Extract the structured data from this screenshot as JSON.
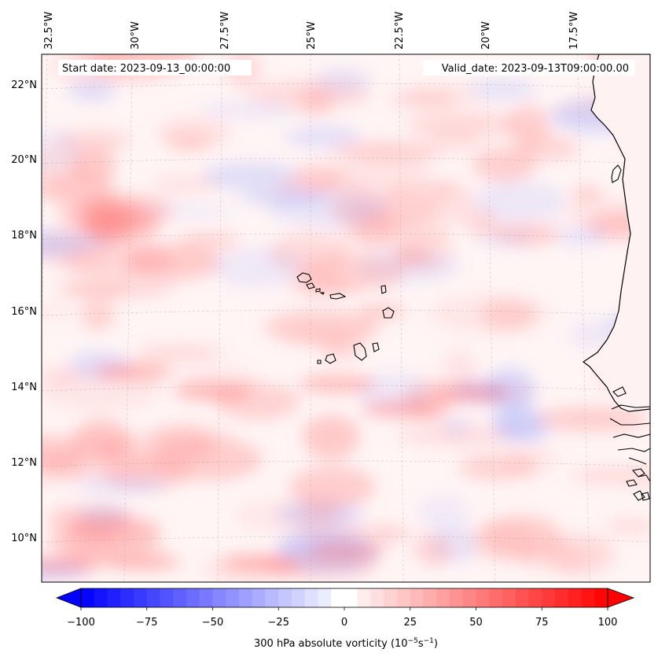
{
  "map": {
    "start_label": "Start date: 2023-09-13_00:00:00",
    "valid_label": "Valid_date: 2023-09-13T09:00:00.00",
    "lon_labels": [
      "32.5°W",
      "30°W",
      "27.5°W",
      "25°W",
      "22.5°W",
      "20°W",
      "17.5°W"
    ],
    "lat_labels": [
      "22°N",
      "20°N",
      "18°N",
      "16°N",
      "14°N",
      "12°N",
      "10°N"
    ],
    "gridlines": true
  },
  "colorbar": {
    "ticks": [
      "−100",
      "−75",
      "−50",
      "−25",
      "0",
      "25",
      "50",
      "75",
      "100"
    ],
    "min": -100,
    "max": 100,
    "step": 5,
    "extend": "both",
    "label_main": "300 hPa absolute vorticity (10",
    "label_exp1": "−5",
    "label_mid": "s",
    "label_exp2": "−1",
    "label_end": ")",
    "colors": {
      "negative": "#0000ff",
      "zero": "#ffffff",
      "positive": "#ff0000"
    }
  }
}
